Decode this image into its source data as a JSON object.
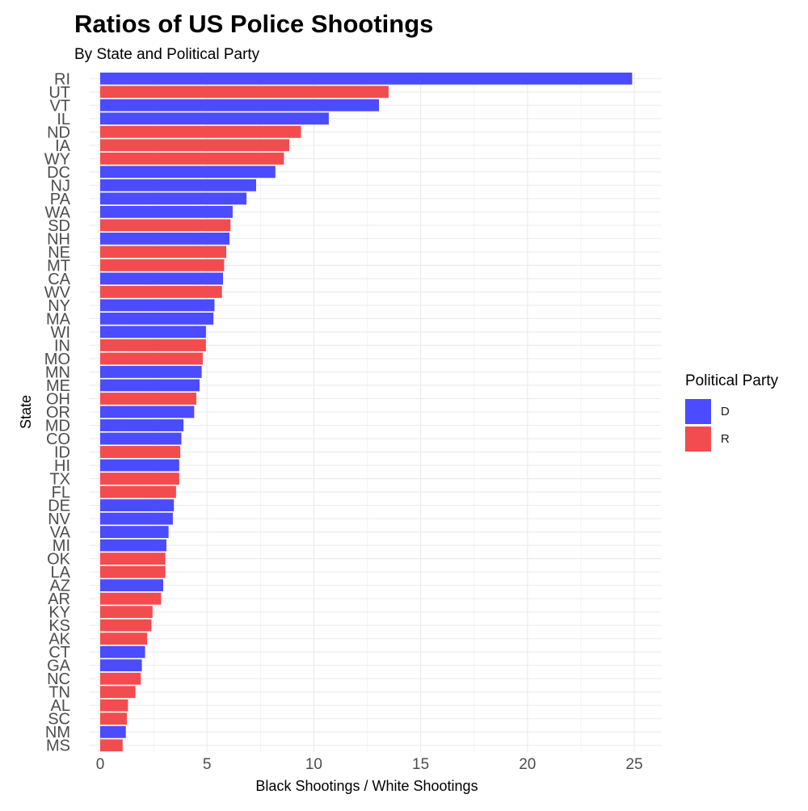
{
  "chart_data": {
    "type": "bar",
    "orientation": "horizontal",
    "title": "Ratios of US Police Shootings",
    "subtitle": "By State and Political Party",
    "xlabel": "Black Shootings / White Shootings",
    "ylabel": "State",
    "xlim": [
      0,
      26
    ],
    "xticks": [
      0,
      5,
      10,
      15,
      20,
      25
    ],
    "grid": true,
    "legend": {
      "title": "Political Party",
      "position": "right",
      "entries": [
        {
          "key": "D",
          "label": "D",
          "color": "#4B4BFF"
        },
        {
          "key": "R",
          "label": "R",
          "color": "#F24C4F"
        }
      ]
    },
    "categories": [
      "RI",
      "UT",
      "VT",
      "IL",
      "ND",
      "IA",
      "WY",
      "DC",
      "NJ",
      "PA",
      "WA",
      "SD",
      "NH",
      "NE",
      "MT",
      "CA",
      "WV",
      "NY",
      "MA",
      "WI",
      "IN",
      "MO",
      "MN",
      "ME",
      "OH",
      "OR",
      "MD",
      "CO",
      "ID",
      "HI",
      "TX",
      "FL",
      "DE",
      "NV",
      "VA",
      "MI",
      "OK",
      "LA",
      "AZ",
      "AR",
      "KY",
      "KS",
      "AK",
      "CT",
      "GA",
      "NC",
      "TN",
      "AL",
      "SC",
      "NM",
      "MS"
    ],
    "values": [
      24.9,
      13.5,
      13.05,
      10.7,
      9.4,
      8.85,
      8.6,
      8.2,
      7.3,
      6.85,
      6.2,
      6.1,
      6.05,
      5.9,
      5.8,
      5.75,
      5.7,
      5.35,
      5.3,
      4.95,
      4.95,
      4.8,
      4.75,
      4.65,
      4.5,
      4.4,
      3.9,
      3.8,
      3.75,
      3.7,
      3.7,
      3.55,
      3.45,
      3.4,
      3.2,
      3.1,
      3.05,
      3.05,
      2.95,
      2.85,
      2.45,
      2.4,
      2.2,
      2.1,
      1.95,
      1.9,
      1.65,
      1.3,
      1.25,
      1.2,
      1.05
    ],
    "party": [
      "D",
      "R",
      "D",
      "D",
      "R",
      "R",
      "R",
      "D",
      "D",
      "D",
      "D",
      "R",
      "D",
      "R",
      "R",
      "D",
      "R",
      "D",
      "D",
      "D",
      "R",
      "R",
      "D",
      "D",
      "R",
      "D",
      "D",
      "D",
      "R",
      "D",
      "R",
      "R",
      "D",
      "D",
      "D",
      "D",
      "R",
      "R",
      "D",
      "R",
      "R",
      "R",
      "R",
      "D",
      "D",
      "R",
      "R",
      "R",
      "R",
      "D",
      "R"
    ]
  }
}
